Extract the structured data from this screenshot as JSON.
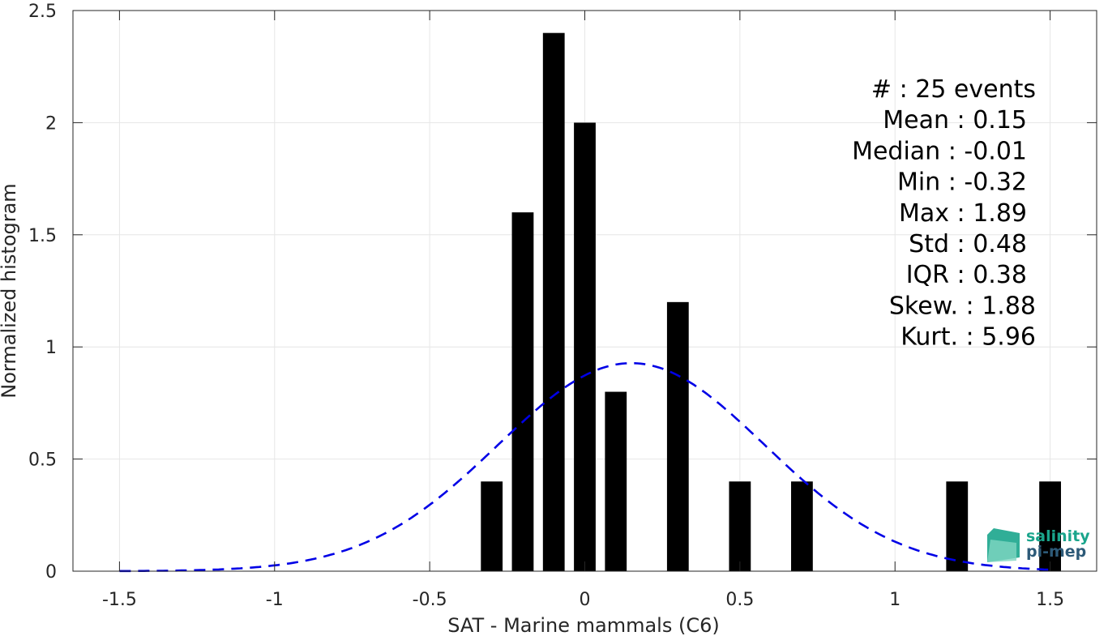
{
  "chart_data": {
    "type": "bar",
    "xlabel": "SAT - Marine mammals (C6)",
    "ylabel": "Normalized histogram",
    "xlim": [
      -1.65,
      1.65
    ],
    "ylim": [
      0,
      2.5
    ],
    "xticks": [
      -1.5,
      -1,
      -0.5,
      0,
      0.5,
      1,
      1.5
    ],
    "xtick_labels": [
      "-1.5",
      "-1",
      "-0.5",
      "0",
      "0.5",
      "1",
      "1.5"
    ],
    "yticks": [
      0,
      0.5,
      1,
      1.5,
      2,
      2.5
    ],
    "ytick_labels": [
      "0",
      "0.5",
      "1",
      "1.5",
      "2",
      "2.5"
    ],
    "grid": true,
    "bar_width": 0.07,
    "bars": {
      "x": [
        -0.3,
        -0.2,
        -0.1,
        0.0,
        0.1,
        0.3,
        0.5,
        0.7,
        1.2,
        1.5
      ],
      "values": [
        0.4,
        1.6,
        2.4,
        2.0,
        0.8,
        1.2,
        0.4,
        0.4,
        0.4,
        0.4
      ],
      "color": "#000000"
    },
    "fit_curve": {
      "style": "dashed",
      "color": "#0000e6",
      "mean": 0.15,
      "std": 0.43
    },
    "stats": [
      {
        "label": "#  : 25 events",
        "id": "count"
      },
      {
        "label": "Mean : 0.15",
        "id": "mean"
      },
      {
        "label": "Median : -0.01",
        "id": "median"
      },
      {
        "label": "Min : -0.32",
        "id": "min"
      },
      {
        "label": "Max : 1.89",
        "id": "max"
      },
      {
        "label": "Std : 0.48",
        "id": "std"
      },
      {
        "label": "IQR : 0.38",
        "id": "iqr"
      },
      {
        "label": "Skew. : 1.88",
        "id": "skew"
      },
      {
        "label": "Kurt. : 5.96",
        "id": "kurt"
      }
    ]
  },
  "logo": {
    "line1": "salinity",
    "line2": "pi-mep",
    "color1": "#1aa58c",
    "color2": "#2d5a78"
  }
}
